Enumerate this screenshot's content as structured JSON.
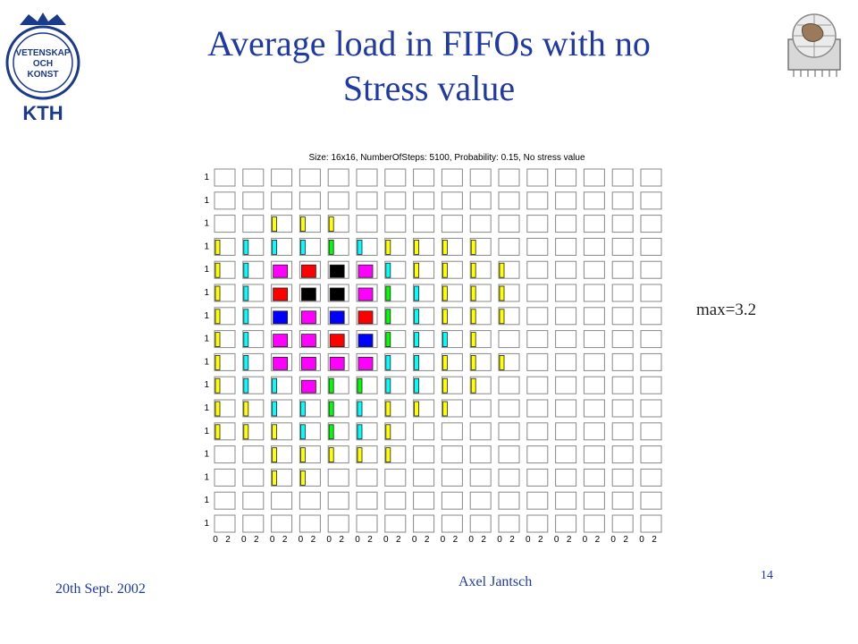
{
  "slide": {
    "title_line1": "Average load in FIFOs with no",
    "title_line2": "Stress value",
    "max_label": "max=3.2",
    "date": "20th Sept. 2002",
    "author": "Axel Jantsch",
    "page_number": "14"
  },
  "logos": {
    "left_text": "KTH",
    "left_seal_text": [
      "VETENSKAP",
      "OCH",
      "KONST"
    ]
  },
  "colors": {
    "title": "#1f3aa6",
    "zero": "#ffffff",
    "level_yellow": "#ffff00",
    "level_cyan": "#00ffff",
    "level_green": "#00ff00",
    "level_magenta": "#ff00ff",
    "level_red": "#ff0000",
    "level_blue": "#0000ff",
    "level_black": "#000000"
  },
  "chart_data": {
    "type": "heatmap",
    "title": "Size: 16x16, NumberOfSteps: 5100, Probability: 0.15, No stress value",
    "rows": 16,
    "cols": 16,
    "y_tick_label": "1",
    "x_tick_labels": [
      "0",
      "2"
    ],
    "max_value": 3.2,
    "legend": [
      "w",
      "y",
      "c",
      "g",
      "m",
      "r",
      "b",
      "k"
    ],
    "cells": [
      "wwwwwwwwwwwwwwww",
      "wwwwwwwwwwwwwwww",
      "wwyyywwwwwwwwwww",
      "ycccgcyyyywwwwww",
      "ycmrkmcyyyywwwww",
      "ycrkkmgcyyywwwww",
      "ycbmbrgcyyywwwww",
      "ycmmrbgccywwwwww",
      "ycmmmmccyyywwwww",
      "yccmggccyywwwwww",
      "yyccgcyyywwwwwww",
      "yyycgcywwwwwwwww",
      "wwyyyyywwwwwwwww",
      "wwyywwwwwwwwwwww",
      "wwwwwwwwwwwwwwww",
      "wwwwwwwwwwwwwwww"
    ]
  }
}
